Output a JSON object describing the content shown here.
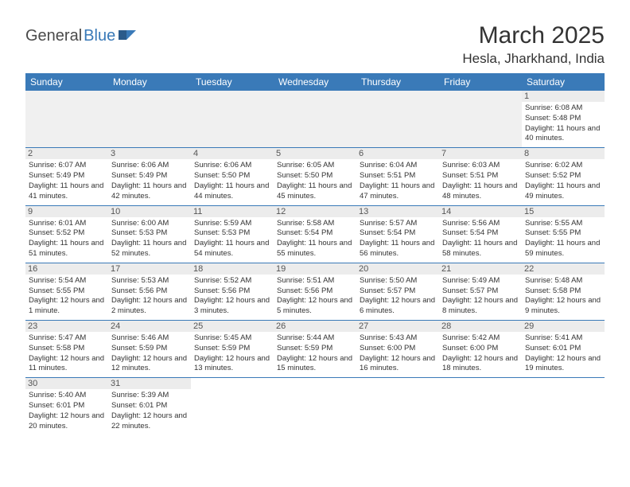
{
  "logo": {
    "dark": "General",
    "blue": "Blue"
  },
  "title": "March 2025",
  "location": "Hesla, Jharkhand, India",
  "colors": {
    "header_bg": "#3a7ab8",
    "header_fg": "#ffffff",
    "daynum_bg": "#ececec",
    "row_border": "#3a7ab8",
    "empty_bg": "#f0f0f0"
  },
  "weekdays": [
    "Sunday",
    "Monday",
    "Tuesday",
    "Wednesday",
    "Thursday",
    "Friday",
    "Saturday"
  ],
  "weeks": [
    [
      {
        "blank": true
      },
      {
        "blank": true
      },
      {
        "blank": true
      },
      {
        "blank": true
      },
      {
        "blank": true
      },
      {
        "blank": true
      },
      {
        "day": "1",
        "sunrise": "Sunrise: 6:08 AM",
        "sunset": "Sunset: 5:48 PM",
        "daylight": "Daylight: 11 hours and 40 minutes."
      }
    ],
    [
      {
        "day": "2",
        "sunrise": "Sunrise: 6:07 AM",
        "sunset": "Sunset: 5:49 PM",
        "daylight": "Daylight: 11 hours and 41 minutes."
      },
      {
        "day": "3",
        "sunrise": "Sunrise: 6:06 AM",
        "sunset": "Sunset: 5:49 PM",
        "daylight": "Daylight: 11 hours and 42 minutes."
      },
      {
        "day": "4",
        "sunrise": "Sunrise: 6:06 AM",
        "sunset": "Sunset: 5:50 PM",
        "daylight": "Daylight: 11 hours and 44 minutes."
      },
      {
        "day": "5",
        "sunrise": "Sunrise: 6:05 AM",
        "sunset": "Sunset: 5:50 PM",
        "daylight": "Daylight: 11 hours and 45 minutes."
      },
      {
        "day": "6",
        "sunrise": "Sunrise: 6:04 AM",
        "sunset": "Sunset: 5:51 PM",
        "daylight": "Daylight: 11 hours and 47 minutes."
      },
      {
        "day": "7",
        "sunrise": "Sunrise: 6:03 AM",
        "sunset": "Sunset: 5:51 PM",
        "daylight": "Daylight: 11 hours and 48 minutes."
      },
      {
        "day": "8",
        "sunrise": "Sunrise: 6:02 AM",
        "sunset": "Sunset: 5:52 PM",
        "daylight": "Daylight: 11 hours and 49 minutes."
      }
    ],
    [
      {
        "day": "9",
        "sunrise": "Sunrise: 6:01 AM",
        "sunset": "Sunset: 5:52 PM",
        "daylight": "Daylight: 11 hours and 51 minutes."
      },
      {
        "day": "10",
        "sunrise": "Sunrise: 6:00 AM",
        "sunset": "Sunset: 5:53 PM",
        "daylight": "Daylight: 11 hours and 52 minutes."
      },
      {
        "day": "11",
        "sunrise": "Sunrise: 5:59 AM",
        "sunset": "Sunset: 5:53 PM",
        "daylight": "Daylight: 11 hours and 54 minutes."
      },
      {
        "day": "12",
        "sunrise": "Sunrise: 5:58 AM",
        "sunset": "Sunset: 5:54 PM",
        "daylight": "Daylight: 11 hours and 55 minutes."
      },
      {
        "day": "13",
        "sunrise": "Sunrise: 5:57 AM",
        "sunset": "Sunset: 5:54 PM",
        "daylight": "Daylight: 11 hours and 56 minutes."
      },
      {
        "day": "14",
        "sunrise": "Sunrise: 5:56 AM",
        "sunset": "Sunset: 5:54 PM",
        "daylight": "Daylight: 11 hours and 58 minutes."
      },
      {
        "day": "15",
        "sunrise": "Sunrise: 5:55 AM",
        "sunset": "Sunset: 5:55 PM",
        "daylight": "Daylight: 11 hours and 59 minutes."
      }
    ],
    [
      {
        "day": "16",
        "sunrise": "Sunrise: 5:54 AM",
        "sunset": "Sunset: 5:55 PM",
        "daylight": "Daylight: 12 hours and 1 minute."
      },
      {
        "day": "17",
        "sunrise": "Sunrise: 5:53 AM",
        "sunset": "Sunset: 5:56 PM",
        "daylight": "Daylight: 12 hours and 2 minutes."
      },
      {
        "day": "18",
        "sunrise": "Sunrise: 5:52 AM",
        "sunset": "Sunset: 5:56 PM",
        "daylight": "Daylight: 12 hours and 3 minutes."
      },
      {
        "day": "19",
        "sunrise": "Sunrise: 5:51 AM",
        "sunset": "Sunset: 5:56 PM",
        "daylight": "Daylight: 12 hours and 5 minutes."
      },
      {
        "day": "20",
        "sunrise": "Sunrise: 5:50 AM",
        "sunset": "Sunset: 5:57 PM",
        "daylight": "Daylight: 12 hours and 6 minutes."
      },
      {
        "day": "21",
        "sunrise": "Sunrise: 5:49 AM",
        "sunset": "Sunset: 5:57 PM",
        "daylight": "Daylight: 12 hours and 8 minutes."
      },
      {
        "day": "22",
        "sunrise": "Sunrise: 5:48 AM",
        "sunset": "Sunset: 5:58 PM",
        "daylight": "Daylight: 12 hours and 9 minutes."
      }
    ],
    [
      {
        "day": "23",
        "sunrise": "Sunrise: 5:47 AM",
        "sunset": "Sunset: 5:58 PM",
        "daylight": "Daylight: 12 hours and 11 minutes."
      },
      {
        "day": "24",
        "sunrise": "Sunrise: 5:46 AM",
        "sunset": "Sunset: 5:59 PM",
        "daylight": "Daylight: 12 hours and 12 minutes."
      },
      {
        "day": "25",
        "sunrise": "Sunrise: 5:45 AM",
        "sunset": "Sunset: 5:59 PM",
        "daylight": "Daylight: 12 hours and 13 minutes."
      },
      {
        "day": "26",
        "sunrise": "Sunrise: 5:44 AM",
        "sunset": "Sunset: 5:59 PM",
        "daylight": "Daylight: 12 hours and 15 minutes."
      },
      {
        "day": "27",
        "sunrise": "Sunrise: 5:43 AM",
        "sunset": "Sunset: 6:00 PM",
        "daylight": "Daylight: 12 hours and 16 minutes."
      },
      {
        "day": "28",
        "sunrise": "Sunrise: 5:42 AM",
        "sunset": "Sunset: 6:00 PM",
        "daylight": "Daylight: 12 hours and 18 minutes."
      },
      {
        "day": "29",
        "sunrise": "Sunrise: 5:41 AM",
        "sunset": "Sunset: 6:01 PM",
        "daylight": "Daylight: 12 hours and 19 minutes."
      }
    ],
    [
      {
        "day": "30",
        "sunrise": "Sunrise: 5:40 AM",
        "sunset": "Sunset: 6:01 PM",
        "daylight": "Daylight: 12 hours and 20 minutes."
      },
      {
        "day": "31",
        "sunrise": "Sunrise: 5:39 AM",
        "sunset": "Sunset: 6:01 PM",
        "daylight": "Daylight: 12 hours and 22 minutes."
      },
      {
        "blank": true
      },
      {
        "blank": true
      },
      {
        "blank": true
      },
      {
        "blank": true
      },
      {
        "blank": true
      }
    ]
  ]
}
